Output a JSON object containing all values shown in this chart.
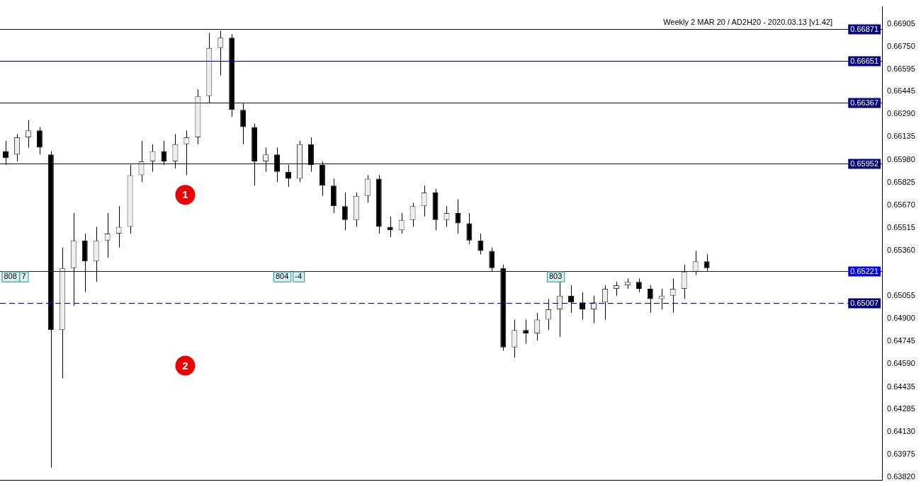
{
  "chart_data": {
    "type": "candlestick",
    "title": "Weekly 2 MAR 20 / AD2H20 - 2020.03.13 [v1.42]",
    "categories": [
      null,
      null,
      null,
      null,
      null,
      null,
      null,
      null,
      null,
      null,
      null,
      null,
      null,
      null,
      null,
      null,
      null,
      null,
      null,
      null,
      null,
      null,
      null,
      null,
      null,
      null,
      null,
      null,
      null,
      null,
      null,
      null,
      null,
      null,
      null,
      null,
      null,
      null,
      null,
      null,
      null,
      null,
      null,
      null,
      null,
      null,
      null,
      null,
      null,
      null,
      null,
      null,
      null,
      null,
      null,
      null,
      null,
      null,
      null,
      null,
      null,
      null,
      null,
      null,
      null,
      null,
      null,
      null,
      null,
      null,
      null,
      null,
      null,
      null,
      null,
      null,
      null,
      null
    ],
    "ohlc": [
      [
        0.66038,
        0.66108,
        0.65945,
        0.65991
      ],
      [
        0.66015,
        0.66155,
        0.65968,
        0.66132
      ],
      [
        0.66132,
        0.66249,
        0.66062,
        0.66179
      ],
      [
        0.66179,
        0.66202,
        0.66015,
        0.66062
      ],
      [
        0.66015,
        0.66038,
        0.63885,
        0.64821
      ],
      [
        0.64821,
        0.65383,
        0.64493,
        0.65243
      ],
      [
        0.65243,
        0.65617,
        0.64985,
        0.6543
      ],
      [
        0.6543,
        0.65477,
        0.65079,
        0.65289
      ],
      [
        0.65289,
        0.65523,
        0.65149,
        0.6543
      ],
      [
        0.6543,
        0.65617,
        0.65313,
        0.65477
      ],
      [
        0.65477,
        0.65664,
        0.65383,
        0.65523
      ],
      [
        0.65523,
        0.65945,
        0.65477,
        0.65875
      ],
      [
        0.65875,
        0.66108,
        0.65828,
        0.65968
      ],
      [
        0.65968,
        0.66085,
        0.65898,
        0.66038
      ],
      [
        0.66038,
        0.66108,
        0.65945,
        0.65968
      ],
      [
        0.65968,
        0.66155,
        0.65921,
        0.66085
      ],
      [
        0.66085,
        0.66179,
        0.65875,
        0.66132
      ],
      [
        0.66132,
        0.66459,
        0.66085,
        0.66413
      ],
      [
        0.66413,
        0.66843,
        0.66366,
        0.6674
      ],
      [
        0.6674,
        0.66857,
        0.66553,
        0.6681
      ],
      [
        0.6681,
        0.66834,
        0.66272,
        0.66319
      ],
      [
        0.66319,
        0.66366,
        0.66085,
        0.66202
      ],
      [
        0.66202,
        0.66225,
        0.65804,
        0.65968
      ],
      [
        0.65968,
        0.66062,
        0.65898,
        0.66015
      ],
      [
        0.66015,
        0.66062,
        0.65828,
        0.65898
      ],
      [
        0.65898,
        0.65945,
        0.65795,
        0.65851
      ],
      [
        0.65851,
        0.66108,
        0.65828,
        0.66085
      ],
      [
        0.66085,
        0.66132,
        0.65898,
        0.65945
      ],
      [
        0.65945,
        0.65968,
        0.65734,
        0.65804
      ],
      [
        0.65804,
        0.65851,
        0.65617,
        0.65664
      ],
      [
        0.65664,
        0.65757,
        0.655,
        0.6557
      ],
      [
        0.6557,
        0.65757,
        0.65523,
        0.65734
      ],
      [
        0.65734,
        0.65875,
        0.65687,
        0.65851
      ],
      [
        0.65851,
        0.65875,
        0.65477,
        0.65523
      ],
      [
        0.65523,
        0.65594,
        0.65453,
        0.655
      ],
      [
        0.655,
        0.65617,
        0.65477,
        0.6557
      ],
      [
        0.6557,
        0.65687,
        0.65523,
        0.65664
      ],
      [
        0.65664,
        0.65804,
        0.65594,
        0.65757
      ],
      [
        0.65757,
        0.65781,
        0.655,
        0.6557
      ],
      [
        0.6557,
        0.65664,
        0.65523,
        0.65617
      ],
      [
        0.65617,
        0.65711,
        0.65477,
        0.65547
      ],
      [
        0.65547,
        0.65617,
        0.65407,
        0.6543
      ],
      [
        0.6543,
        0.65477,
        0.65336,
        0.6536
      ],
      [
        0.6536,
        0.65383,
        0.65219,
        0.65243
      ],
      [
        0.65243,
        0.65266,
        0.64681,
        0.64704
      ],
      [
        0.64704,
        0.64892,
        0.64634,
        0.64821
      ],
      [
        0.64821,
        0.64892,
        0.64728,
        0.64798
      ],
      [
        0.64798,
        0.64938,
        0.64751,
        0.64892
      ],
      [
        0.64892,
        0.65032,
        0.64821,
        0.64962
      ],
      [
        0.64962,
        0.65149,
        0.64775,
        0.65055
      ],
      [
        0.65055,
        0.65126,
        0.64938,
        0.65009
      ],
      [
        0.65009,
        0.65079,
        0.64892,
        0.64962
      ],
      [
        0.64962,
        0.65055,
        0.64868,
        0.65009
      ],
      [
        0.65009,
        0.65126,
        0.64892,
        0.65102
      ],
      [
        0.65102,
        0.65149,
        0.65055,
        0.65126
      ],
      [
        0.65126,
        0.65172,
        0.65102,
        0.65149
      ],
      [
        0.65149,
        0.65172,
        0.65079,
        0.65102
      ],
      [
        0.65102,
        0.65126,
        0.64938,
        0.65032
      ],
      [
        0.65032,
        0.65102,
        0.64962,
        0.65055
      ],
      [
        0.65055,
        0.65172,
        0.64938,
        0.65102
      ],
      [
        0.65102,
        0.65266,
        0.65032,
        0.65219
      ],
      [
        0.65219,
        0.6536,
        0.65196,
        0.65289
      ],
      [
        0.65289,
        0.65336,
        0.65219,
        0.65243
      ],
      null,
      null,
      null,
      null,
      null,
      null,
      null,
      null,
      null,
      null,
      null,
      null,
      null,
      null,
      null
    ],
    "ylim": [
      0.638,
      0.6702
    ],
    "yticks": [
      0.66905,
      {
        "value": 0.6675,
        "label": "0.66750"
      },
      0.66595,
      0.66445,
      {
        "value": 0.6629,
        "label": "0.66290"
      },
      0.66135,
      {
        "value": 0.6598,
        "label": "0.65980"
      },
      0.65825,
      {
        "value": 0.6567,
        "label": "0.65670"
      },
      0.65515,
      {
        "value": 0.6536,
        "label": "0.65360"
      },
      0.65055,
      {
        "value": 0.649,
        "label": "0.64900"
      },
      0.64745,
      {
        "value": 0.6459,
        "label": "0.64590"
      },
      0.64435,
      0.64285,
      {
        "value": 0.6413,
        "label": "0.64130"
      },
      0.63975,
      {
        "value": 0.6382,
        "label": "0.63820"
      }
    ],
    "ref_lines": [
      {
        "axis": "y",
        "value": 0.66871,
        "label": "0.66871",
        "color": "#000080"
      },
      {
        "axis": "y",
        "value": 0.66651,
        "label": "0.66651",
        "color": "#000080"
      },
      {
        "axis": "y",
        "value": 0.66367,
        "label": "0.66367",
        "color": "#000080"
      },
      {
        "axis": "y",
        "value": 0.65952,
        "label": "0.65952",
        "color": "#000080"
      },
      {
        "axis": "y",
        "value": 0.65221,
        "label": "0.65221",
        "color": "#0000ff"
      },
      {
        "axis": "y",
        "value": 0.65007,
        "label": "0.65007",
        "color": "#000080",
        "line_style": "dashed"
      }
    ],
    "annotations": [
      "1",
      "2",
      "808",
      "7",
      "804",
      "-4",
      "803"
    ],
    "grid": false,
    "legend": false
  }
}
